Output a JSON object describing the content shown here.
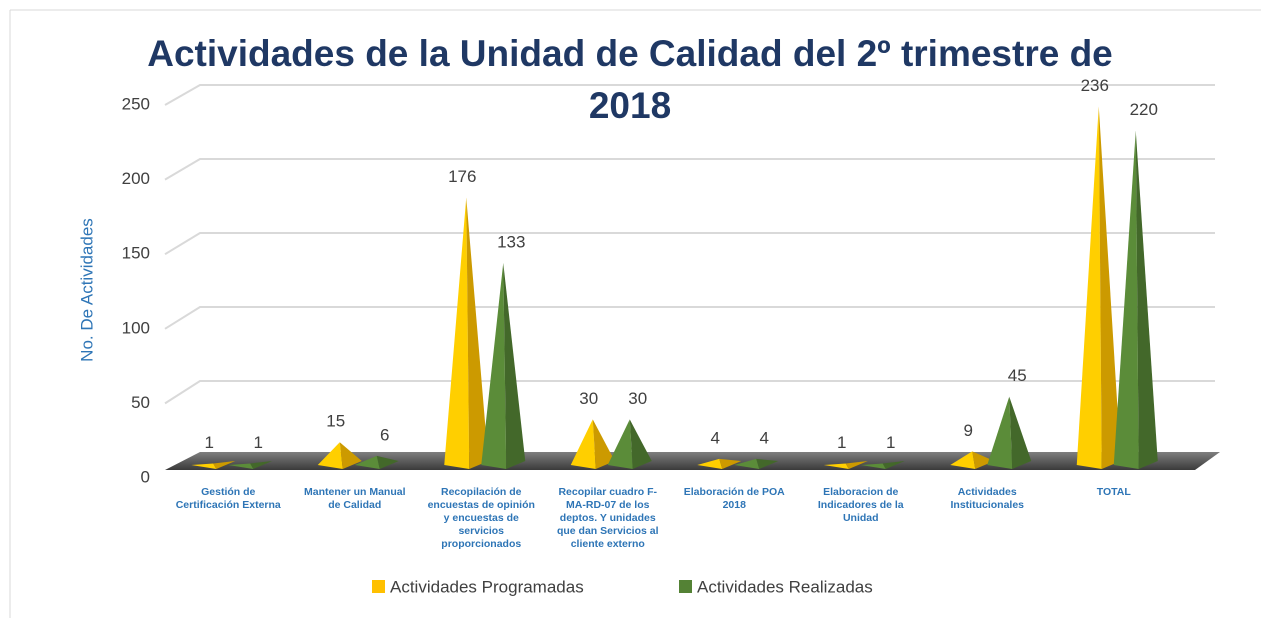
{
  "chart_data": {
    "type": "pyramid3d",
    "title": "Actividades de la Unidad de Calidad del 2º trimestre de 2018",
    "y_label": "No. De Actividades",
    "categories": [
      "Gestión de Certificación Externa",
      "Mantener un Manual de Calidad",
      "Recopilación de encuestas de opinión y encuestas de servicios proporcionados",
      "Recopilar cuadro F-MA-RD-07 de los deptos. Y unidades que dan Servicios al cliente externo",
      "Elaboración de POA 2018",
      "Elaboracion de Indicadores de la Unidad",
      "Actividades Institucionales",
      "TOTAL"
    ],
    "series": [
      {
        "name": "Actividades Programadas",
        "color": "#ffc000",
        "values": [
          1,
          15,
          176,
          30,
          4,
          1,
          9,
          236
        ]
      },
      {
        "name": "Actividades Realizadas",
        "color": "#548235",
        "values": [
          1,
          6,
          133,
          30,
          4,
          1,
          45,
          220
        ]
      }
    ],
    "ylim": [
      0,
      250
    ],
    "yticks": [
      0,
      50,
      100,
      150,
      200,
      250
    ],
    "grid": true,
    "legend": "bottom"
  }
}
